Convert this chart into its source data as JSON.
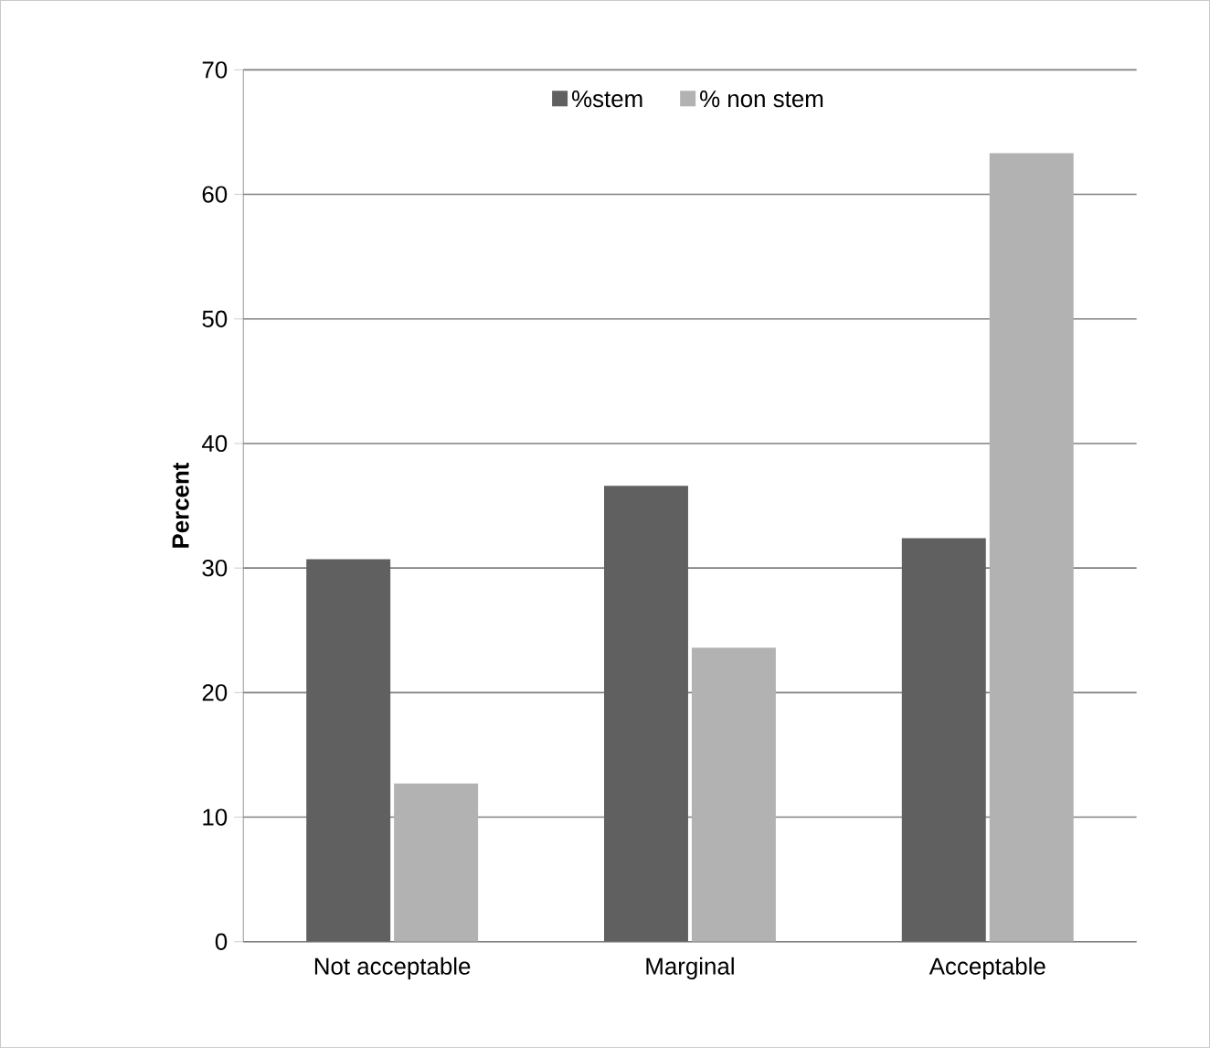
{
  "chart_data": {
    "type": "bar",
    "ylabel": "Percent",
    "categories": [
      "Not acceptable",
      "Marginal",
      "Acceptable"
    ],
    "series": [
      {
        "name": "%stem",
        "color": "#606060",
        "values": [
          30.7,
          36.6,
          32.4
        ]
      },
      {
        "name": "% non stem",
        "color": "#b2b2b2",
        "values": [
          12.7,
          23.6,
          63.3
        ]
      }
    ],
    "ylim": [
      0,
      70
    ],
    "yticks": [
      0,
      10,
      20,
      30,
      40,
      50,
      60,
      70
    ],
    "grid": "y",
    "legend": "top"
  }
}
